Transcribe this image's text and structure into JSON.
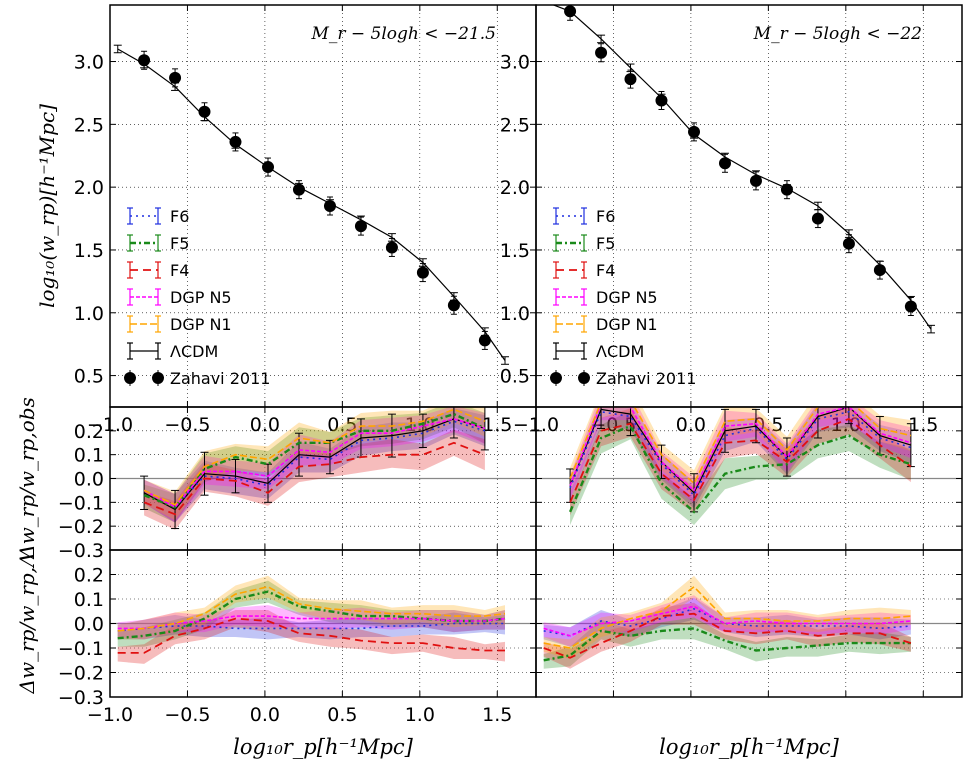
{
  "figure": {
    "xlabel": "log₁₀r_p[h⁻¹Mpc]",
    "ylabel_top": "log₁₀(w_rp)[h⁻¹Mpc]",
    "ylabel_mid": "Δw_rp/w_rp,obs",
    "ylabel_bot": "Δw_rp/w_rp,Λ",
    "panel_titles": [
      "M_r − 5logh < −21.5",
      "M_r − 5logh < −22"
    ],
    "colors": {
      "F6": "#1f2fe0",
      "F5": "#1a8a1a",
      "F4": "#e01010",
      "DGP N5": "#ff00ff",
      "DGP N1": "#ffa500",
      "ΛCDM": "#000000",
      "Zahavi 2011": "#000000"
    }
  },
  "chart_data": [
    {
      "type": "line",
      "panel": "top-left",
      "title": "M_r − 5logh < −21.5",
      "xlim": [
        -1.0,
        1.75
      ],
      "ylim": [
        0.25,
        3.45
      ],
      "xticks": [
        "−1.0",
        "−0.5",
        "0.0",
        "0.5",
        "1.0",
        "1.5"
      ],
      "yticks": [
        "0.5",
        "1.0",
        "1.5",
        "2.0",
        "2.5",
        "3.0"
      ],
      "grid": true,
      "legend_placement": "lower-left",
      "legend": [
        "F6",
        "F5",
        "F4",
        "DGP N5",
        "DGP N1",
        "ΛCDM",
        "Zahavi 2011"
      ],
      "x": [
        -0.95,
        -0.78,
        -0.58,
        -0.39,
        -0.19,
        0.02,
        0.22,
        0.42,
        0.62,
        0.82,
        1.02,
        1.22,
        1.42,
        1.55
      ],
      "series": [
        {
          "name": "ΛCDM",
          "values": [
            3.1,
            2.98,
            2.8,
            2.56,
            2.34,
            2.16,
            2.0,
            1.87,
            1.74,
            1.6,
            1.4,
            1.13,
            0.85,
            0.62
          ]
        },
        {
          "name": "Zahavi 2011",
          "x": [
            -0.78,
            -0.58,
            -0.39,
            -0.19,
            0.02,
            0.22,
            0.42,
            0.62,
            0.82,
            1.02,
            1.22,
            1.42
          ],
          "values": [
            3.01,
            2.87,
            2.6,
            2.36,
            2.16,
            1.98,
            1.85,
            1.69,
            1.52,
            1.32,
            1.06,
            0.78
          ]
        }
      ]
    },
    {
      "type": "line",
      "panel": "top-right",
      "title": "M_r − 5logh < −22",
      "xlim": [
        -1.0,
        1.75
      ],
      "ylim": [
        0.25,
        3.45
      ],
      "xticks": [
        "−1.0",
        "−0.5",
        "0.0",
        "0.5",
        "1.0",
        "1.5"
      ],
      "yticks": [
        "0.5",
        "1.0",
        "1.5",
        "2.0",
        "2.5",
        "3.0"
      ],
      "grid": true,
      "legend_placement": "lower-left",
      "legend": [
        "F6",
        "F5",
        "F4",
        "DGP N5",
        "DGP N1",
        "ΛCDM",
        "Zahavi 2011"
      ],
      "x": [
        -0.95,
        -0.78,
        -0.58,
        -0.39,
        -0.19,
        0.02,
        0.22,
        0.42,
        0.62,
        0.82,
        1.02,
        1.22,
        1.42,
        1.55
      ],
      "series": [
        {
          "name": "ΛCDM",
          "values": [
            3.48,
            3.4,
            3.18,
            2.95,
            2.71,
            2.42,
            2.24,
            2.1,
            1.99,
            1.85,
            1.63,
            1.38,
            1.1,
            0.87
          ]
        },
        {
          "name": "Zahavi 2011",
          "x": [
            -0.78,
            -0.58,
            -0.39,
            -0.19,
            0.02,
            0.22,
            0.42,
            0.62,
            0.82,
            1.02,
            1.22,
            1.42
          ],
          "values": [
            3.4,
            3.07,
            2.86,
            2.69,
            2.44,
            2.19,
            2.05,
            1.98,
            1.75,
            1.55,
            1.34,
            1.05
          ]
        }
      ]
    },
    {
      "type": "line",
      "panel": "middle-left",
      "xlim": [
        -1.0,
        1.75
      ],
      "ylim": [
        -0.3,
        0.3
      ],
      "yticks": [
        "−0.3",
        "−0.2",
        "−0.1",
        "0.0",
        "0.1",
        "0.2"
      ],
      "grid": true,
      "x": [
        -0.78,
        -0.58,
        -0.39,
        -0.19,
        0.02,
        0.22,
        0.42,
        0.62,
        0.82,
        1.02,
        1.22,
        1.42
      ],
      "series": [
        {
          "name": "ΛCDM",
          "values": [
            -0.06,
            -0.13,
            0.02,
            0.01,
            -0.02,
            0.1,
            0.09,
            0.17,
            0.18,
            0.2,
            0.25,
            0.21
          ]
        },
        {
          "name": "F6",
          "values": [
            -0.05,
            -0.12,
            0.01,
            0.0,
            -0.03,
            0.09,
            0.08,
            0.16,
            0.17,
            0.19,
            0.24,
            0.2
          ]
        },
        {
          "name": "F5",
          "values": [
            -0.07,
            -0.12,
            0.04,
            0.09,
            0.06,
            0.15,
            0.15,
            0.2,
            0.2,
            0.23,
            0.27,
            0.21
          ]
        },
        {
          "name": "F4",
          "values": [
            -0.1,
            -0.15,
            0.0,
            -0.01,
            -0.06,
            0.05,
            0.06,
            0.09,
            0.1,
            0.1,
            0.15,
            0.1
          ]
        },
        {
          "name": "DGP N5",
          "values": [
            -0.05,
            -0.12,
            0.03,
            0.03,
            0.01,
            0.12,
            0.11,
            0.19,
            0.19,
            0.22,
            0.25,
            0.21
          ]
        },
        {
          "name": "DGP N1",
          "values": [
            -0.05,
            -0.11,
            0.05,
            0.1,
            0.08,
            0.17,
            0.15,
            0.22,
            0.22,
            0.24,
            0.29,
            0.24
          ]
        }
      ]
    },
    {
      "type": "line",
      "panel": "middle-right",
      "xlim": [
        -1.0,
        1.75
      ],
      "ylim": [
        -0.3,
        0.3
      ],
      "grid": true,
      "x": [
        -0.78,
        -0.58,
        -0.39,
        -0.19,
        0.02,
        0.22,
        0.42,
        0.62,
        0.82,
        1.02,
        1.22,
        1.42
      ],
      "series": [
        {
          "name": "ΛCDM",
          "values": [
            -0.03,
            0.29,
            0.27,
            0.07,
            -0.06,
            0.2,
            0.22,
            0.09,
            0.26,
            0.3,
            0.18,
            0.14
          ]
        },
        {
          "name": "F6",
          "values": [
            -0.04,
            0.28,
            0.26,
            0.06,
            -0.07,
            0.18,
            0.21,
            0.08,
            0.25,
            0.28,
            0.17,
            0.13
          ]
        },
        {
          "name": "F5",
          "values": [
            -0.14,
            0.17,
            0.22,
            -0.02,
            -0.14,
            0.02,
            0.05,
            0.06,
            0.14,
            0.18,
            0.1,
            0.06
          ]
        },
        {
          "name": "F4",
          "values": [
            -0.1,
            0.2,
            0.23,
            0.02,
            -0.09,
            0.15,
            0.16,
            0.07,
            0.2,
            0.25,
            0.14,
            0.05
          ]
        },
        {
          "name": "DGP N5",
          "values": [
            -0.03,
            0.31,
            0.3,
            0.07,
            -0.05,
            0.22,
            0.23,
            0.09,
            0.27,
            0.3,
            0.19,
            0.15
          ]
        },
        {
          "name": "DGP N1",
          "values": [
            0.0,
            0.32,
            0.33,
            0.1,
            -0.02,
            0.24,
            0.25,
            0.12,
            0.3,
            0.33,
            0.21,
            0.18
          ]
        }
      ]
    },
    {
      "type": "line",
      "panel": "bottom-left",
      "xlim": [
        -1.0,
        1.75
      ],
      "ylim": [
        -0.3,
        0.3
      ],
      "yticks": [
        "−0.3",
        "−0.2",
        "−0.1",
        "0.0",
        "0.1",
        "0.2"
      ],
      "xticks": [
        "−1.0",
        "−0.5",
        "0.0",
        "0.5",
        "1.0",
        "1.5"
      ],
      "grid": true,
      "x": [
        -0.95,
        -0.78,
        -0.58,
        -0.39,
        -0.19,
        0.02,
        0.22,
        0.42,
        0.62,
        0.82,
        1.02,
        1.22,
        1.42,
        1.55
      ],
      "series": [
        {
          "name": "F6",
          "values": [
            -0.03,
            -0.02,
            -0.01,
            -0.01,
            -0.02,
            -0.02,
            -0.02,
            -0.02,
            -0.02,
            -0.01,
            -0.01,
            0.0,
            0.0,
            0.0
          ]
        },
        {
          "name": "F5",
          "values": [
            -0.06,
            -0.05,
            -0.03,
            0.02,
            0.1,
            0.13,
            0.07,
            0.05,
            0.03,
            0.03,
            0.02,
            0.01,
            0.01,
            0.02
          ]
        },
        {
          "name": "F4",
          "values": [
            -0.12,
            -0.12,
            -0.05,
            -0.02,
            0.02,
            0.01,
            -0.04,
            -0.05,
            -0.07,
            -0.08,
            -0.08,
            -0.1,
            -0.11,
            -0.11
          ]
        },
        {
          "name": "DGP N5",
          "values": [
            -0.02,
            -0.02,
            0.0,
            0.01,
            0.03,
            0.03,
            0.02,
            0.02,
            0.02,
            0.02,
            0.02,
            0.01,
            0.01,
            0.02
          ]
        },
        {
          "name": "DGP N1",
          "values": [
            -0.03,
            -0.02,
            0.0,
            0.04,
            0.12,
            0.15,
            0.08,
            0.06,
            0.05,
            0.04,
            0.04,
            0.03,
            0.03,
            0.04
          ]
        }
      ]
    },
    {
      "type": "line",
      "panel": "bottom-right",
      "xlim": [
        -1.0,
        1.75
      ],
      "ylim": [
        -0.3,
        0.3
      ],
      "grid": true,
      "x": [
        -0.95,
        -0.78,
        -0.58,
        -0.39,
        -0.19,
        0.02,
        0.22,
        0.42,
        0.62,
        0.82,
        1.02,
        1.22,
        1.42
      ],
      "series": [
        {
          "name": "F6",
          "values": [
            -0.03,
            -0.05,
            0.01,
            -0.01,
            0.02,
            0.06,
            0.0,
            -0.01,
            -0.01,
            -0.01,
            -0.01,
            -0.02,
            -0.01
          ]
        },
        {
          "name": "F5",
          "values": [
            -0.15,
            -0.13,
            -0.03,
            -0.05,
            -0.03,
            -0.02,
            -0.07,
            -0.11,
            -0.1,
            -0.09,
            -0.08,
            -0.08,
            -0.08
          ]
        },
        {
          "name": "F4",
          "values": [
            -0.1,
            -0.14,
            -0.08,
            -0.03,
            0.03,
            0.04,
            -0.03,
            -0.04,
            -0.03,
            -0.05,
            -0.04,
            -0.04,
            -0.08
          ]
        },
        {
          "name": "DGP N5",
          "values": [
            -0.02,
            -0.05,
            0.0,
            0.01,
            0.04,
            0.07,
            0.0,
            0.01,
            0.0,
            0.0,
            0.0,
            0.0,
            0.01
          ]
        },
        {
          "name": "DGP N1",
          "values": [
            -0.08,
            -0.1,
            -0.02,
            0.02,
            0.05,
            0.15,
            0.02,
            0.02,
            0.01,
            0.01,
            0.02,
            0.02,
            0.03
          ]
        }
      ]
    }
  ]
}
